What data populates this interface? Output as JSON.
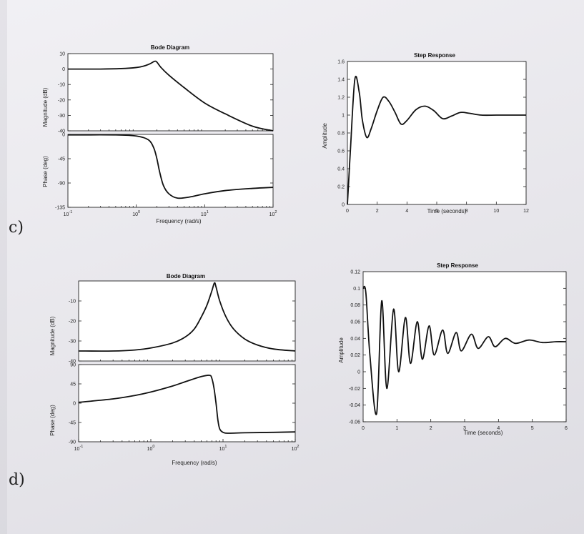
{
  "labels": {
    "c": "c)",
    "d": "d)"
  },
  "chart_data": [
    {
      "id": "c_bode_mag",
      "type": "line",
      "title": "Bode Diagram",
      "ylabel": "Magnitude (dB)",
      "xscale": "log",
      "xlim": [
        0.1,
        100
      ],
      "ylim": [
        -40,
        10
      ],
      "yticks": [
        10,
        0,
        -10,
        -20,
        -30,
        -40
      ],
      "ytick_labels": [
        "10",
        "0",
        "-10",
        "-20",
        "-30",
        "-40"
      ],
      "series": [
        {
          "x": [
            0.1,
            0.3,
            0.6,
            1.0,
            1.3,
            1.6,
            1.85,
            2.0,
            2.3,
            3.0,
            5.0,
            10,
            20,
            50,
            100
          ],
          "y": [
            0,
            0,
            0.3,
            1,
            2,
            3.5,
            5,
            4.5,
            1,
            -4,
            -12,
            -22,
            -29,
            -37,
            -40
          ]
        }
      ]
    },
    {
      "id": "c_bode_phase",
      "type": "line",
      "ylabel": "Phase (deg)",
      "xlabel": "Frequency  (rad/s)",
      "xscale": "log",
      "xlim": [
        0.1,
        100
      ],
      "ylim": [
        -135,
        0
      ],
      "yticks": [
        0,
        -45,
        -90,
        -135
      ],
      "ytick_labels": [
        "0",
        "-45",
        "-90",
        "-135"
      ],
      "xticks": [
        0.1,
        1,
        10,
        100
      ],
      "xtick_labels": [
        {
          "base": "10",
          "exp": "-1"
        },
        {
          "base": "10",
          "exp": "0"
        },
        {
          "base": "10",
          "exp": "1"
        },
        {
          "base": "10",
          "exp": "2"
        }
      ],
      "series": [
        {
          "x": [
            0.1,
            0.5,
            1.0,
            1.5,
            1.8,
            2.0,
            2.2,
            2.5,
            3.0,
            4.0,
            6.0,
            10,
            20,
            50,
            100
          ],
          "y": [
            -1,
            -1,
            -3,
            -10,
            -25,
            -45,
            -70,
            -95,
            -110,
            -118,
            -116,
            -110,
            -104,
            -100,
            -98
          ]
        }
      ]
    },
    {
      "id": "c_step",
      "type": "line",
      "title": "Step Response",
      "ylabel": "Amplitude",
      "xlabel": "Time (seconds)",
      "xlim": [
        0,
        12
      ],
      "ylim": [
        0,
        1.6
      ],
      "xticks": [
        0,
        2,
        4,
        6,
        8,
        10,
        12
      ],
      "xtick_labels": [
        "0",
        "2",
        "4",
        "6",
        "8",
        "10",
        "12"
      ],
      "yticks": [
        0,
        0.2,
        0.4,
        0.6,
        0.8,
        1,
        1.2,
        1.4,
        1.6
      ],
      "ytick_labels": [
        "0",
        "0.2",
        "0.4",
        "0.6",
        "0.8",
        "1",
        "1.2",
        "1.4",
        "1.6"
      ],
      "series": [
        {
          "x": [
            0,
            0.2,
            0.5,
            0.8,
            1.0,
            1.3,
            1.6,
            2.0,
            2.4,
            2.8,
            3.2,
            3.6,
            4.0,
            4.6,
            5.2,
            5.8,
            6.4,
            7.0,
            7.6,
            8.2,
            9,
            10,
            11,
            12
          ],
          "y": [
            0,
            0.6,
            1.4,
            1.25,
            0.95,
            0.75,
            0.85,
            1.05,
            1.2,
            1.15,
            1.03,
            0.9,
            0.94,
            1.06,
            1.1,
            1.05,
            0.96,
            0.99,
            1.03,
            1.02,
            1.0,
            1.0,
            1.0,
            1.0
          ]
        }
      ]
    },
    {
      "id": "d_bode_mag",
      "type": "line",
      "title": "Bode Diagram",
      "ylabel": "Magnitude (dB)",
      "xscale": "log",
      "xlim": [
        0.1,
        100
      ],
      "ylim": [
        -40,
        0
      ],
      "yticks": [
        -10,
        -20,
        -30,
        -40
      ],
      "ytick_labels": [
        "-10",
        "-20",
        "-30",
        "-40"
      ],
      "series": [
        {
          "x": [
            0.1,
            0.3,
            0.6,
            1.0,
            2.0,
            3.0,
            4.0,
            5.0,
            6.0,
            7.0,
            7.6,
            8.0,
            9.0,
            11,
            14,
            20,
            30,
            50,
            100
          ],
          "y": [
            -35,
            -35,
            -34.5,
            -33.5,
            -31,
            -28,
            -24,
            -18,
            -12,
            -5,
            -1,
            -3,
            -10,
            -18,
            -24,
            -29,
            -32,
            -34,
            -35
          ]
        }
      ]
    },
    {
      "id": "d_bode_phase",
      "type": "line",
      "ylabel": "Phase (deg)",
      "xlabel": "Frequency  (rad/s)",
      "xscale": "log",
      "xlim": [
        0.1,
        100
      ],
      "ylim": [
        -90,
        90
      ],
      "yticks": [
        90,
        45,
        0,
        -45,
        -90
      ],
      "ytick_labels": [
        "90",
        "45",
        "0",
        "-45",
        "-90"
      ],
      "xticks": [
        0.1,
        1,
        10,
        100
      ],
      "xtick_labels": [
        {
          "base": "10",
          "exp": "-1"
        },
        {
          "base": "10",
          "exp": "0"
        },
        {
          "base": "10",
          "exp": "1"
        },
        {
          "base": "10",
          "exp": "2"
        }
      ],
      "series": [
        {
          "x": [
            0.1,
            0.3,
            0.6,
            1.0,
            2.0,
            3.0,
            5.0,
            6.5,
            7.0,
            7.5,
            8.0,
            8.5,
            9.0,
            10,
            12,
            20,
            50,
            100
          ],
          "y": [
            2,
            10,
            18,
            26,
            40,
            50,
            62,
            65,
            58,
            35,
            0,
            -40,
            -60,
            -68,
            -70,
            -69,
            -68,
            -67
          ]
        }
      ]
    },
    {
      "id": "d_step",
      "type": "line",
      "title": "Step Response",
      "ylabel": "Amplitude",
      "xlabel": "Time (seconds)",
      "xlim": [
        0,
        6
      ],
      "ylim": [
        -0.06,
        0.12
      ],
      "xticks": [
        0,
        1,
        2,
        3,
        4,
        5,
        6
      ],
      "xtick_labels": [
        "0",
        "1",
        "2",
        "3",
        "4",
        "5",
        "6"
      ],
      "yticks": [
        -0.06,
        -0.04,
        -0.02,
        0,
        0.02,
        0.04,
        0.06,
        0.08,
        0.1,
        0.12
      ],
      "ytick_labels": [
        "-0.06",
        "-0.04",
        "-0.02",
        "0",
        "0.02",
        "0.04",
        "0.06",
        "0.08",
        "0.1",
        "0.12"
      ],
      "series": [
        {
          "x": [
            0,
            0.08,
            0.2,
            0.4,
            0.55,
            0.7,
            0.9,
            1.05,
            1.25,
            1.4,
            1.6,
            1.75,
            1.95,
            2.1,
            2.35,
            2.5,
            2.75,
            2.9,
            3.2,
            3.4,
            3.7,
            3.9,
            4.2,
            4.5,
            4.9,
            5.3,
            5.7,
            6
          ],
          "y": [
            0.1,
            0.095,
            0.02,
            -0.05,
            0.085,
            -0.02,
            0.075,
            0.0,
            0.065,
            0.01,
            0.06,
            0.015,
            0.055,
            0.02,
            0.05,
            0.022,
            0.047,
            0.025,
            0.045,
            0.028,
            0.042,
            0.03,
            0.04,
            0.034,
            0.038,
            0.035,
            0.036,
            0.036
          ]
        }
      ]
    }
  ]
}
